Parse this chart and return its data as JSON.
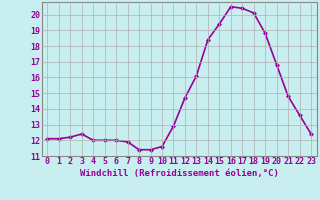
{
  "x": [
    0,
    1,
    2,
    3,
    4,
    5,
    6,
    7,
    8,
    9,
    10,
    11,
    12,
    13,
    14,
    15,
    16,
    17,
    18,
    19,
    20,
    21,
    22,
    23
  ],
  "y": [
    12.1,
    12.1,
    12.2,
    12.4,
    12.0,
    12.0,
    12.0,
    11.9,
    11.4,
    11.4,
    11.6,
    12.9,
    14.7,
    16.1,
    18.4,
    19.4,
    20.5,
    20.4,
    20.1,
    18.8,
    16.8,
    14.8,
    13.6,
    12.4
  ],
  "line_color": "#990099",
  "marker": "D",
  "marker_size": 2.0,
  "bg_color": "#c8eef0",
  "grid_color": "#b0b0b0",
  "xlabel": "Windchill (Refroidissement éolien,°C)",
  "xlim": [
    -0.5,
    23.5
  ],
  "ylim": [
    11.0,
    20.8
  ],
  "yticks": [
    11,
    12,
    13,
    14,
    15,
    16,
    17,
    18,
    19,
    20
  ],
  "xticks": [
    0,
    1,
    2,
    3,
    4,
    5,
    6,
    7,
    8,
    9,
    10,
    11,
    12,
    13,
    14,
    15,
    16,
    17,
    18,
    19,
    20,
    21,
    22,
    23
  ],
  "tick_label_color": "#990099",
  "xlabel_color": "#990099",
  "xlabel_fontsize": 6.5,
  "tick_fontsize": 6.0,
  "line_width": 1.2
}
